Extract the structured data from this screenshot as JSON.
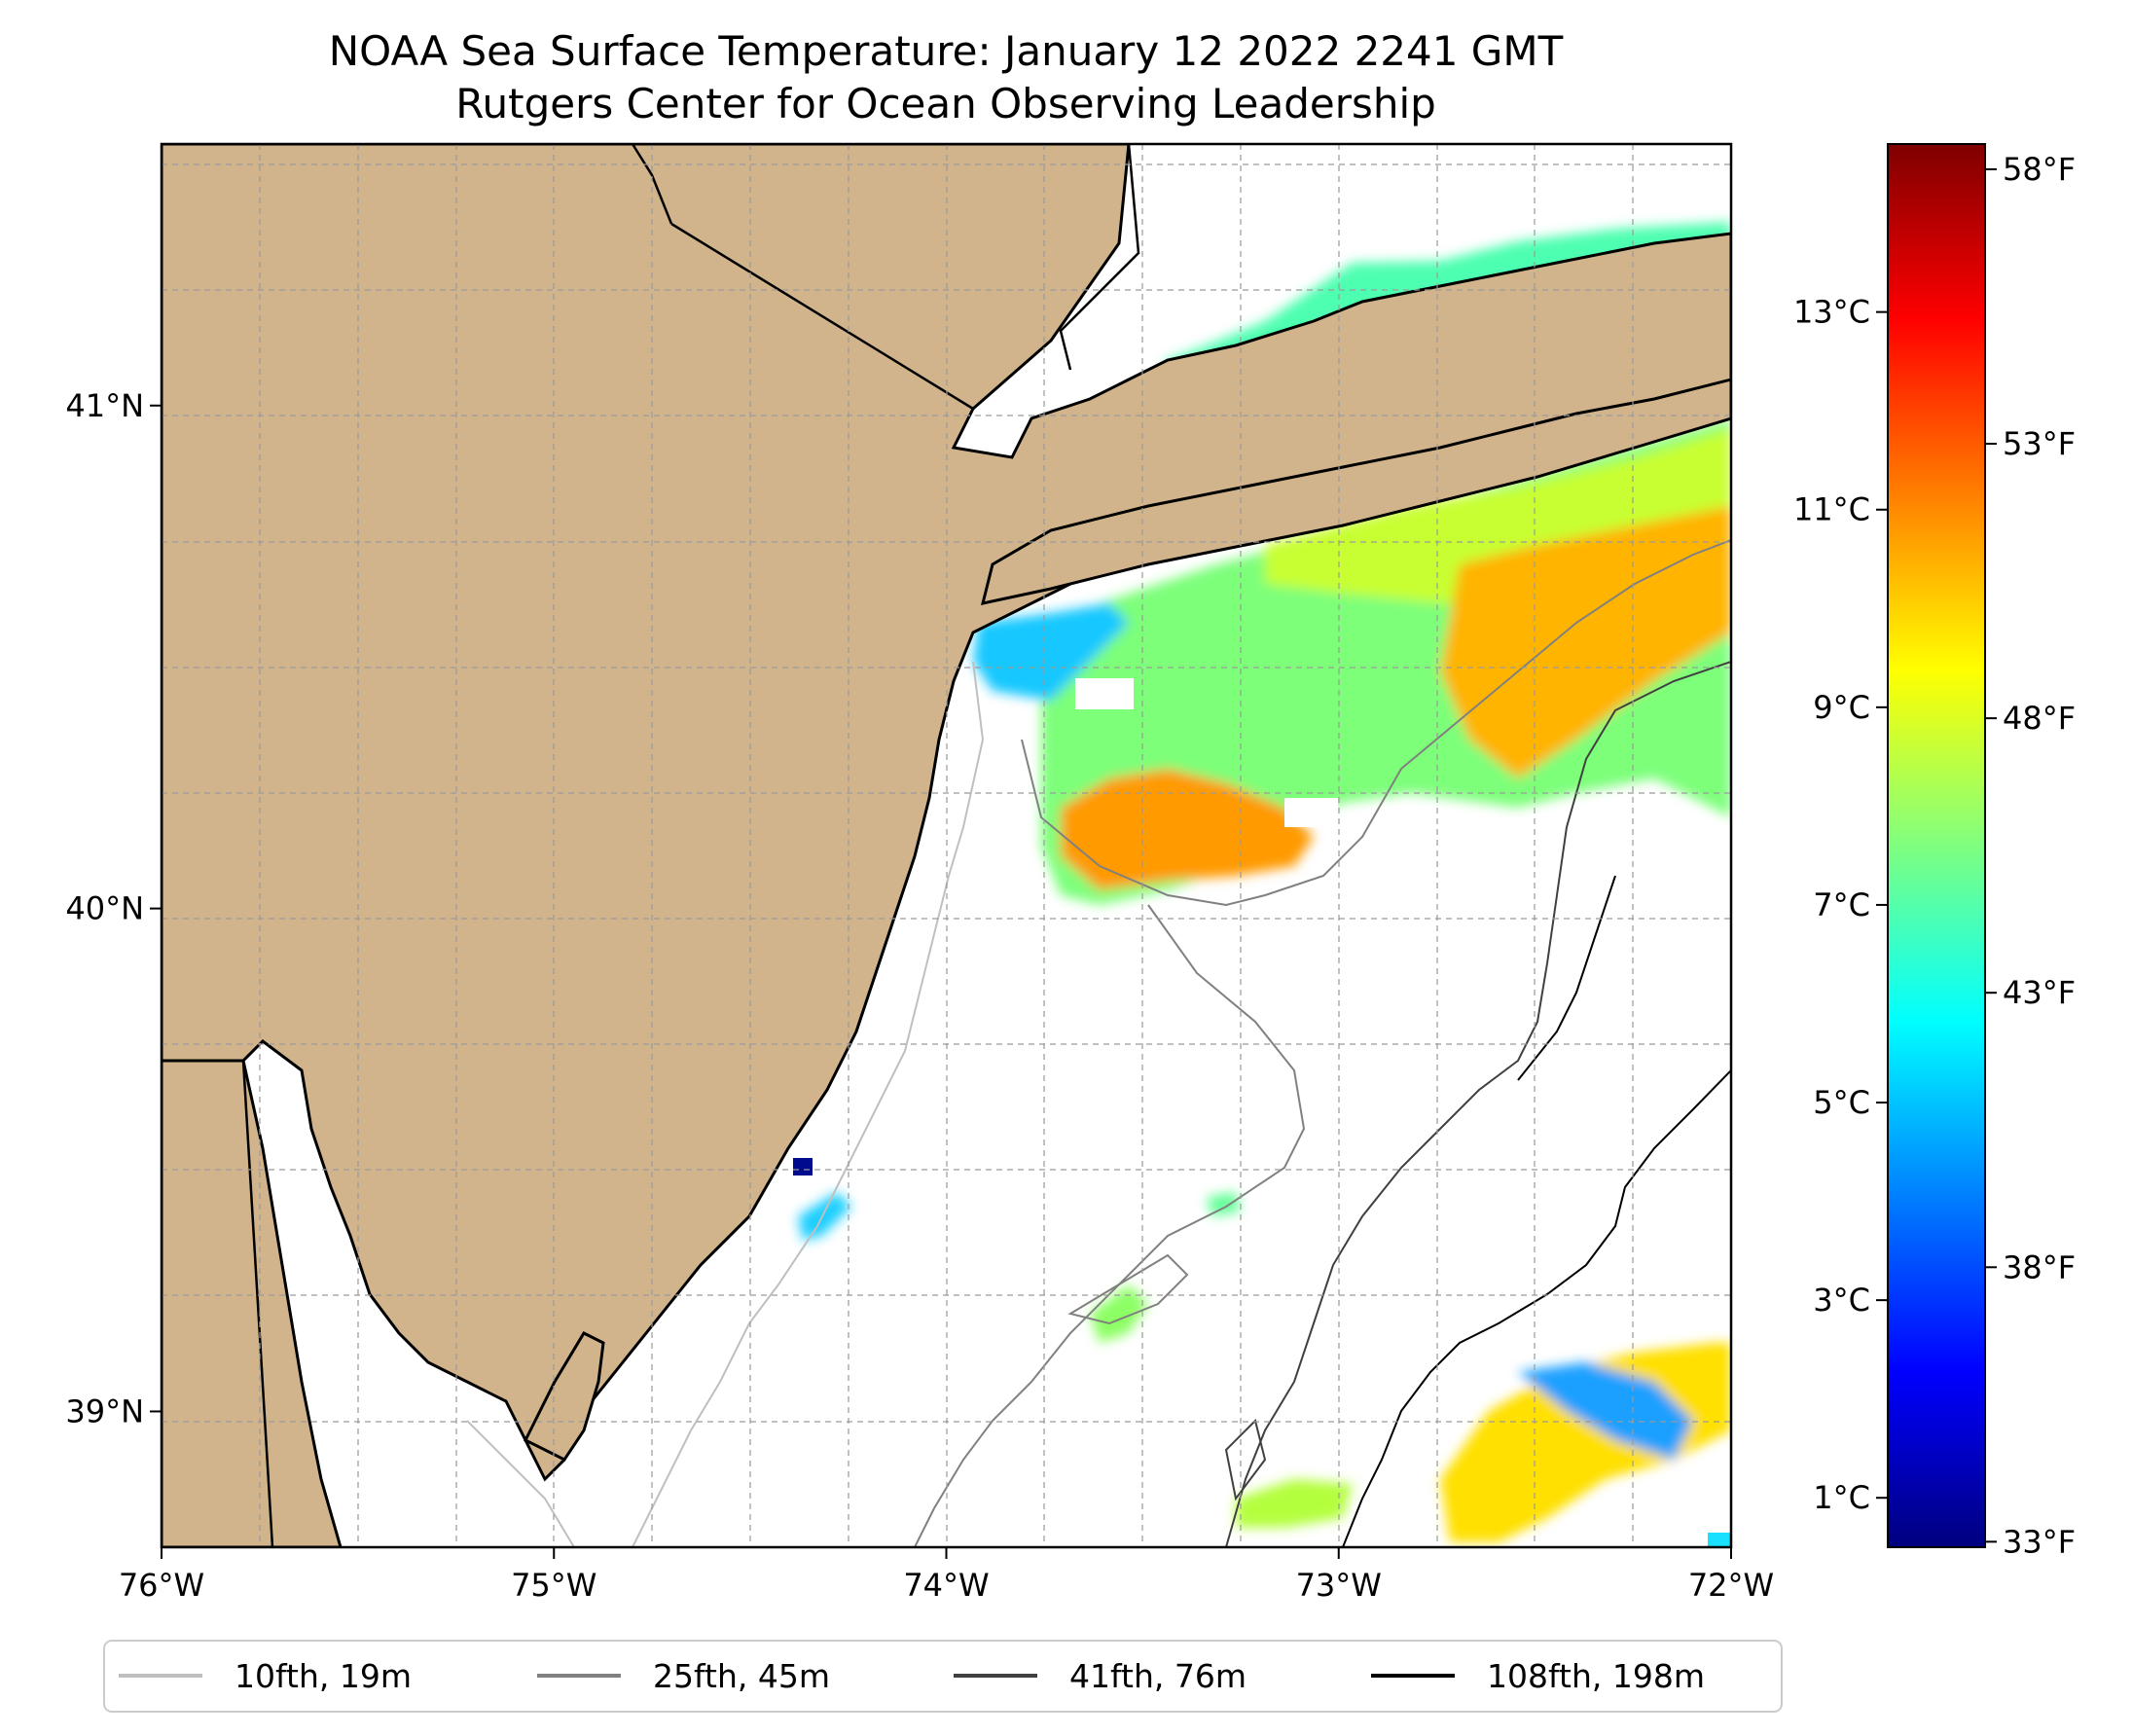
{
  "title": {
    "line1": "NOAA Sea Surface Temperature: January 12 2022 2241 GMT",
    "line2": "Rutgers Center for Ocean Observing Leadership"
  },
  "map": {
    "lon_range": [
      -76,
      -72
    ],
    "lat_range": [
      38.73,
      41.52
    ],
    "x_ticks": [
      {
        "lon": -76,
        "label": "76°W"
      },
      {
        "lon": -75,
        "label": "75°W"
      },
      {
        "lon": -74,
        "label": "74°W"
      },
      {
        "lon": -73,
        "label": "73°W"
      },
      {
        "lon": -72,
        "label": "72°W"
      }
    ],
    "y_ticks": [
      {
        "lat": 41,
        "label": "41°N"
      },
      {
        "lat": 40,
        "label": "40°N"
      },
      {
        "lat": 39,
        "label": "39°N"
      }
    ],
    "land_color": "#d2b48c",
    "gridlines": true
  },
  "colorbar": {
    "colormap": "jet",
    "range_c": [
      0.5,
      14.7
    ],
    "celsius_ticks": [
      {
        "value": 1,
        "label": "1°C"
      },
      {
        "value": 3,
        "label": "3°C"
      },
      {
        "value": 5,
        "label": "5°C"
      },
      {
        "value": 7,
        "label": "7°C"
      },
      {
        "value": 9,
        "label": "9°C"
      },
      {
        "value": 11,
        "label": "11°C"
      },
      {
        "value": 13,
        "label": "13°C"
      }
    ],
    "fahrenheit_ticks": [
      {
        "value": 33,
        "label": "33°F"
      },
      {
        "value": 38,
        "label": "38°F"
      },
      {
        "value": 43,
        "label": "43°F"
      },
      {
        "value": 48,
        "label": "48°F"
      },
      {
        "value": 53,
        "label": "53°F"
      },
      {
        "value": 58,
        "label": "58°F"
      }
    ]
  },
  "legend": {
    "placement": "bottom",
    "items": [
      {
        "label": "10fth, 19m",
        "color": "#bfbfbf"
      },
      {
        "label": "25fth, 45m",
        "color": "#808080"
      },
      {
        "label": "41fth, 76m",
        "color": "#404040"
      },
      {
        "label": "108fth, 198m",
        "color": "#000000"
      }
    ]
  }
}
